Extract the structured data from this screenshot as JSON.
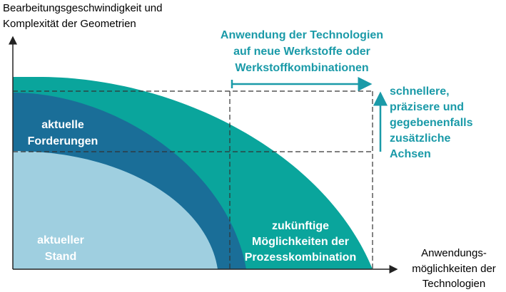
{
  "y_axis_label": [
    "Bearbeitungsgeschwindigkeit und",
    "Komplexität der Geometrien"
  ],
  "x_axis_label": [
    "Anwendungs-",
    "möglichkeiten der",
    "Technologien"
  ],
  "top_annotation": [
    "Anwendung der Technologien",
    "auf neue Werkstoffe oder",
    "Werkstoffkombinationen"
  ],
  "right_annotation": [
    "schnellere,",
    "präzisere und",
    "gegebenenfalls",
    "zusätzliche",
    "Achsen"
  ],
  "regions": {
    "current_requirements": [
      "aktuelle",
      "Forderungen"
    ],
    "current_state": [
      "aktueller",
      "Stand"
    ],
    "future": [
      "zukünftige",
      "Möglichkeiten der",
      "Prozesskombination"
    ]
  }
}
